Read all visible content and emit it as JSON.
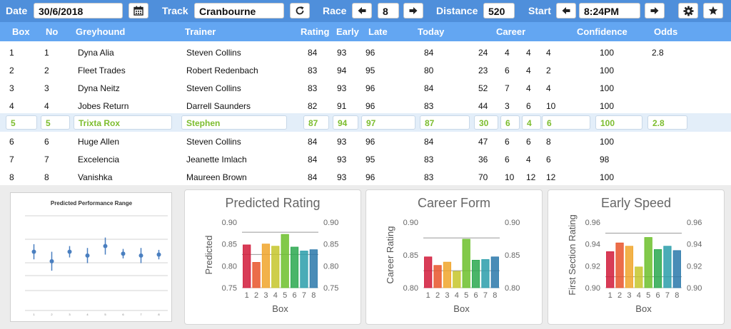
{
  "toolbar": {
    "date_label": "Date",
    "date_value": "30/6/2018",
    "track_label": "Track",
    "track_value": "Cranbourne",
    "race_label": "Race",
    "race_value": "8",
    "distance_label": "Distance",
    "distance_value": "520",
    "start_label": "Start",
    "start_value": "8:24PM",
    "icons": [
      "calendar-icon",
      "refresh-icon",
      "arrow-left-icon",
      "arrow-right-icon",
      "gear-icon",
      "star-icon"
    ]
  },
  "table": {
    "headers": [
      "Box",
      "No",
      "Greyhound",
      "Trainer",
      "Rating",
      "Early",
      "Late",
      "Today",
      "Career",
      "Confidence",
      "Odds"
    ],
    "rows": [
      {
        "box": "1",
        "no": "1",
        "name": "Dyna Alia",
        "trainer": "Steven Collins",
        "rating": "84",
        "early": "93",
        "late": "96",
        "today": "84",
        "c1": "24",
        "c2": "4",
        "c3": "4",
        "c4": "4",
        "confidence": "100",
        "odds": "2.8"
      },
      {
        "box": "2",
        "no": "2",
        "name": "Fleet Trades",
        "trainer": "Robert Redenbach",
        "rating": "83",
        "early": "94",
        "late": "95",
        "today": "80",
        "c1": "23",
        "c2": "6",
        "c3": "4",
        "c4": "2",
        "confidence": "100",
        "odds": ""
      },
      {
        "box": "3",
        "no": "3",
        "name": "Dyna Neitz",
        "trainer": "Steven Collins",
        "rating": "83",
        "early": "93",
        "late": "96",
        "today": "84",
        "c1": "52",
        "c2": "7",
        "c3": "4",
        "c4": "4",
        "confidence": "100",
        "odds": ""
      },
      {
        "box": "4",
        "no": "4",
        "name": "Jobes Return",
        "trainer": "Darrell Saunders",
        "rating": "82",
        "early": "91",
        "late": "96",
        "today": "83",
        "c1": "44",
        "c2": "3",
        "c3": "6",
        "c4": "10",
        "confidence": "100",
        "odds": ""
      },
      {
        "box": "5",
        "no": "5",
        "name": "Trixta Rox",
        "trainer": "Stephen",
        "rating": "87",
        "early": "94",
        "late": "97",
        "today": "87",
        "c1": "30",
        "c2": "6",
        "c3": "4",
        "c4": "6",
        "confidence": "100",
        "odds": "2.8",
        "selected": true
      },
      {
        "box": "6",
        "no": "6",
        "name": "Huge Allen",
        "trainer": "Steven Collins",
        "rating": "84",
        "early": "93",
        "late": "96",
        "today": "84",
        "c1": "47",
        "c2": "6",
        "c3": "6",
        "c4": "8",
        "confidence": "100",
        "odds": ""
      },
      {
        "box": "7",
        "no": "7",
        "name": "Excelencia",
        "trainer": "Jeanette Imlach",
        "rating": "84",
        "early": "93",
        "late": "95",
        "today": "83",
        "c1": "36",
        "c2": "6",
        "c3": "4",
        "c4": "6",
        "confidence": "98",
        "odds": ""
      },
      {
        "box": "8",
        "no": "8",
        "name": "Vanishka",
        "trainer": "Maureen Brown",
        "rating": "84",
        "early": "93",
        "late": "96",
        "today": "83",
        "c1": "70",
        "c2": "10",
        "c3": "12",
        "c4": "12",
        "confidence": "100",
        "odds": ""
      }
    ]
  },
  "chart_data": [
    {
      "type": "scatter",
      "title": "Predicted Performance Range",
      "x": [
        1,
        2,
        3,
        4,
        5,
        6,
        7,
        8
      ],
      "tick_labels": [
        "1",
        "2",
        "3",
        "4",
        "5",
        "6",
        "7",
        "8"
      ],
      "y": [
        0.62,
        0.52,
        0.62,
        0.58,
        0.68,
        0.6,
        0.58,
        0.59
      ],
      "error": [
        0.08,
        0.1,
        0.06,
        0.08,
        0.09,
        0.05,
        0.08,
        0.05
      ],
      "ylim": [
        0,
        1
      ],
      "color": "#4a7fc0",
      "grid": true
    },
    {
      "type": "bar",
      "title": "Predicted Rating",
      "categories": [
        "1",
        "2",
        "3",
        "4",
        "5",
        "6",
        "7",
        "8"
      ],
      "values": [
        0.848,
        0.808,
        0.85,
        0.845,
        0.872,
        0.843,
        0.834,
        0.837
      ],
      "xlabel": "Box",
      "ylabel": "Predicted",
      "ylim": [
        0.75,
        0.9
      ],
      "yticks": [
        "0.75",
        "0.80",
        "0.85",
        "0.90"
      ],
      "ref_lines": [
        0.877,
        0.826
      ],
      "colors": [
        "#d11a3a",
        "#e8542a",
        "#f0a42a",
        "#c6c62a",
        "#6cbf2a",
        "#2aa84f",
        "#2a9eaa",
        "#2a78aa"
      ]
    },
    {
      "type": "bar",
      "title": "Career Form",
      "categories": [
        "1",
        "2",
        "3",
        "4",
        "5",
        "6",
        "7",
        "8"
      ],
      "values": [
        0.847,
        0.834,
        0.839,
        0.825,
        0.874,
        0.842,
        0.843,
        0.847
      ],
      "xlabel": "Box",
      "ylabel": "Career Rating",
      "ylim": [
        0.8,
        0.9
      ],
      "yticks": [
        "0.80",
        "0.85",
        "0.90"
      ],
      "ref_lines": [
        0.876,
        0.826
      ],
      "colors": [
        "#d11a3a",
        "#e8542a",
        "#f0a42a",
        "#c6c62a",
        "#6cbf2a",
        "#2aa84f",
        "#2a9eaa",
        "#2a78aa"
      ]
    },
    {
      "type": "bar",
      "title": "Early Speed",
      "categories": [
        "1",
        "2",
        "3",
        "4",
        "5",
        "6",
        "7",
        "8"
      ],
      "values": [
        0.933,
        0.941,
        0.938,
        0.919,
        0.946,
        0.935,
        0.938,
        0.934
      ],
      "xlabel": "Box",
      "ylabel": "First Section Rating",
      "ylim": [
        0.9,
        0.96
      ],
      "yticks": [
        "0.90",
        "0.92",
        "0.94",
        "0.96"
      ],
      "ref_lines": [
        0.95,
        0.91
      ],
      "colors": [
        "#d11a3a",
        "#e8542a",
        "#f0a42a",
        "#c6c62a",
        "#6cbf2a",
        "#2aa84f",
        "#2a9eaa",
        "#2a78aa"
      ]
    }
  ]
}
